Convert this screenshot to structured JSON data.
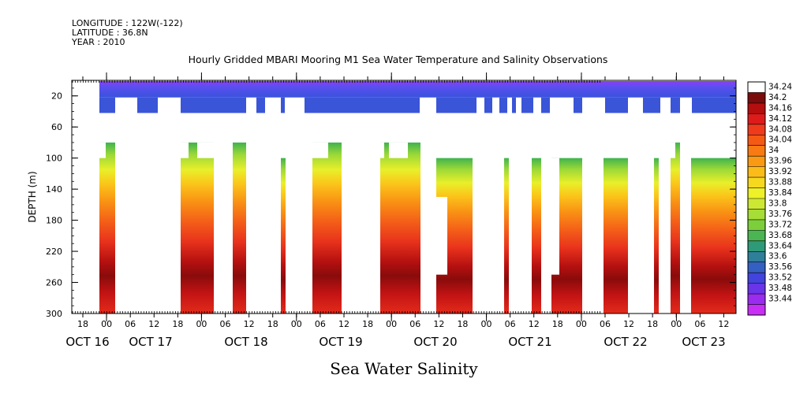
{
  "header": {
    "longitude": "LONGITUDE : 122W(-122)",
    "latitude": "LATITUDE : 36.8N",
    "year": "YEAR : 2010"
  },
  "chart_data": {
    "type": "heatmap",
    "title": "Hourly Gridded MBARI Mooring M1 Sea Water Temperature and Salinity Observations",
    "xlabel": "",
    "ylabel": "DEPTH (m)",
    "caption": "Sea Water Salinity",
    "x_hour_ticks": [
      "18",
      "00",
      "06",
      "12",
      "18",
      "00",
      "06",
      "12",
      "18",
      "00",
      "06",
      "12",
      "18",
      "00",
      "06",
      "12",
      "18",
      "00",
      "06",
      "12",
      "18",
      "00",
      "06",
      "12",
      "18",
      "00",
      "06",
      "12",
      "18",
      "00",
      "06",
      "12"
    ],
    "x_date_labels": [
      "OCT 16",
      "OCT 17",
      "OCT 18",
      "OCT 19",
      "OCT 20",
      "OCT 21",
      "OCT 22",
      "OCT 23"
    ],
    "y_ticks": [
      20,
      60,
      100,
      140,
      180,
      220,
      260,
      300
    ],
    "ylim": [
      300,
      0
    ],
    "colorbar_levels": [
      "34.24",
      "34.2",
      "34.16",
      "34.12",
      "34.08",
      "34.04",
      "34",
      "33.96",
      "33.92",
      "33.88",
      "33.84",
      "33.8",
      "33.76",
      "33.72",
      "33.68",
      "33.64",
      "33.6",
      "33.56",
      "33.52",
      "33.48",
      "33.44"
    ],
    "colorbar_colors": [
      "#ffffff",
      "#7a0c0c",
      "#b40e0e",
      "#dd1b1b",
      "#ef3a1c",
      "#f55a15",
      "#f87a12",
      "#fa9a14",
      "#fbbb18",
      "#f6d81e",
      "#eef028",
      "#cde832",
      "#a6dd36",
      "#7ccf3a",
      "#4bb553",
      "#2f9a77",
      "#2f7f98",
      "#3460c2",
      "#4244dd",
      "#6a34e8",
      "#9a2cf0",
      "#c82ef6"
    ],
    "surface_band": {
      "depth_range": [
        0,
        40
      ]
    },
    "deep_columns_count": 20
  }
}
